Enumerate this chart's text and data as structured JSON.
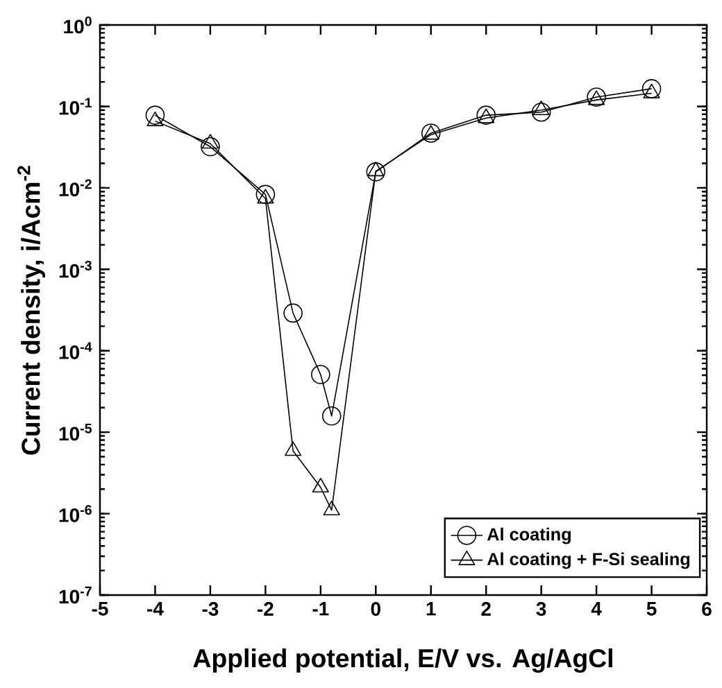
{
  "chart_data": {
    "type": "line",
    "xlabel": "Applied potential, E/V vs. Ag/AgCl",
    "ylabel": "Current density, i/Acm$^{-2}$",
    "log": "y",
    "xlim": [
      -5,
      6
    ],
    "xticks": [
      -5,
      -4,
      -3,
      -2,
      -1,
      0,
      1,
      2,
      3,
      4,
      5,
      6
    ],
    "ylim": [
      1e-07,
      1
    ],
    "yticks": [
      {
        "value": 1e-07,
        "label": "10$^{-7}$"
      },
      {
        "value": 1e-06,
        "label": "10$^{-6}$"
      },
      {
        "value": 1e-05,
        "label": "10$^{-5}$"
      },
      {
        "value": 0.0001,
        "label": "10$^{-4}$"
      },
      {
        "value": 0.001,
        "label": "10$^{-3}$"
      },
      {
        "value": 0.01,
        "label": "10$^{-2}$"
      },
      {
        "value": 0.1,
        "label": "10$^{-1}$"
      },
      {
        "value": 1,
        "label": "10$^{0}$"
      }
    ],
    "legend": "bottom right",
    "grid": false,
    "series": [
      {
        "name": "Al coating",
        "color": "#000000",
        "marker": "circle",
        "x": [
          -4,
          -3,
          -2,
          -1.5,
          -1,
          -0.8,
          0,
          1,
          2,
          3,
          4,
          5
        ],
        "values": [
          0.078,
          0.032,
          0.0083,
          0.00029,
          5.1e-05,
          1.58e-05,
          0.0157,
          0.047,
          0.078,
          0.085,
          0.13,
          0.165
        ]
      },
      {
        "name": "Al coating + F-Si sealing",
        "color": "#000000",
        "marker": "triangle",
        "x": [
          -4,
          -3,
          -2,
          -1.5,
          -1,
          -0.8,
          0,
          1,
          2,
          3,
          4,
          5
        ],
        "values": [
          0.066,
          0.035,
          0.0074,
          5.9e-06,
          2.1e-06,
          1.1e-06,
          0.016,
          0.045,
          0.072,
          0.09,
          0.12,
          0.145
        ]
      }
    ]
  }
}
